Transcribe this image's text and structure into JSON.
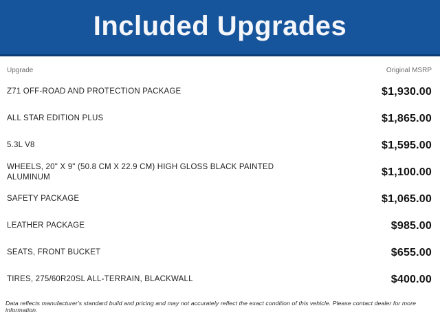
{
  "header": {
    "title": "Included Upgrades"
  },
  "columns": {
    "upgrade": "Upgrade",
    "msrp": "Original MSRP"
  },
  "rows": [
    {
      "label": "Z71 OFF-ROAD AND PROTECTION PACKAGE",
      "price": "$1,930.00"
    },
    {
      "label": "ALL STAR EDITION PLUS",
      "price": "$1,865.00"
    },
    {
      "label": "5.3L V8",
      "price": "$1,595.00"
    },
    {
      "label": "WHEELS, 20\" X 9\" (50.8 CM X 22.9 CM) HIGH GLOSS BLACK PAINTED ALUMINUM",
      "price": "$1,100.00"
    },
    {
      "label": "SAFETY PACKAGE",
      "price": "$1,065.00"
    },
    {
      "label": "LEATHER PACKAGE",
      "price": "$985.00"
    },
    {
      "label": "SEATS, FRONT BUCKET",
      "price": "$655.00"
    },
    {
      "label": "TIRES, 275/60R20SL ALL-TERRAIN, BLACKWALL",
      "price": "$400.00"
    }
  ],
  "footer": {
    "disclaimer": "Data reflects manufacturer's standard build and pricing and may not accurately reflect the exact condition of this vehicle. Please contact dealer for more information."
  },
  "colors": {
    "banner_bg": "#16549C",
    "banner_border": "#0D3E74",
    "title_text": "#F4F6F9"
  }
}
